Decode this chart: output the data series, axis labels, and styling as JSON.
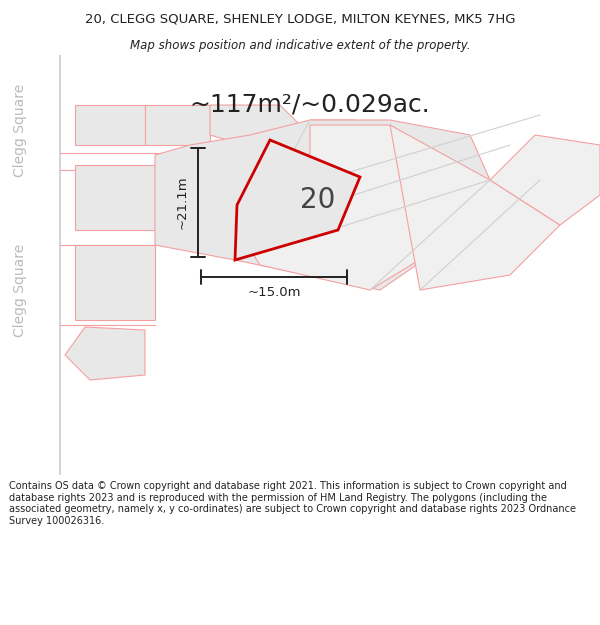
{
  "title_line1": "20, CLEGG SQUARE, SHENLEY LODGE, MILTON KEYNES, MK5 7HG",
  "title_line2": "Map shows position and indicative extent of the property.",
  "area_text": "~117m²/~0.029ac.",
  "label_20": "20",
  "dim_vertical": "~21.1m",
  "dim_horizontal": "~15.0m",
  "street_label_top": "Clegg Square",
  "street_label_bottom": "Clegg Square",
  "footer_text": "Contains OS data © Crown copyright and database right 2021. This information is subject to Crown copyright and database rights 2023 and is reproduced with the permission of HM Land Registry. The polygons (including the associated geometry, namely x, y co-ordinates) are subject to Crown copyright and database rights 2023 Ordnance Survey 100026316.",
  "bg_color": "#ffffff",
  "poly_fill_light": "#e8e8e8",
  "poly_fill_white": "#f0f0f0",
  "poly_edge_pink": "#f4a0a0",
  "poly_edge_red": "#cc0000",
  "poly_fill_other": "#e0e0e0",
  "dim_color": "#222222",
  "street_color": "#bbbbbb",
  "title_color": "#222222",
  "footer_color": "#222222"
}
